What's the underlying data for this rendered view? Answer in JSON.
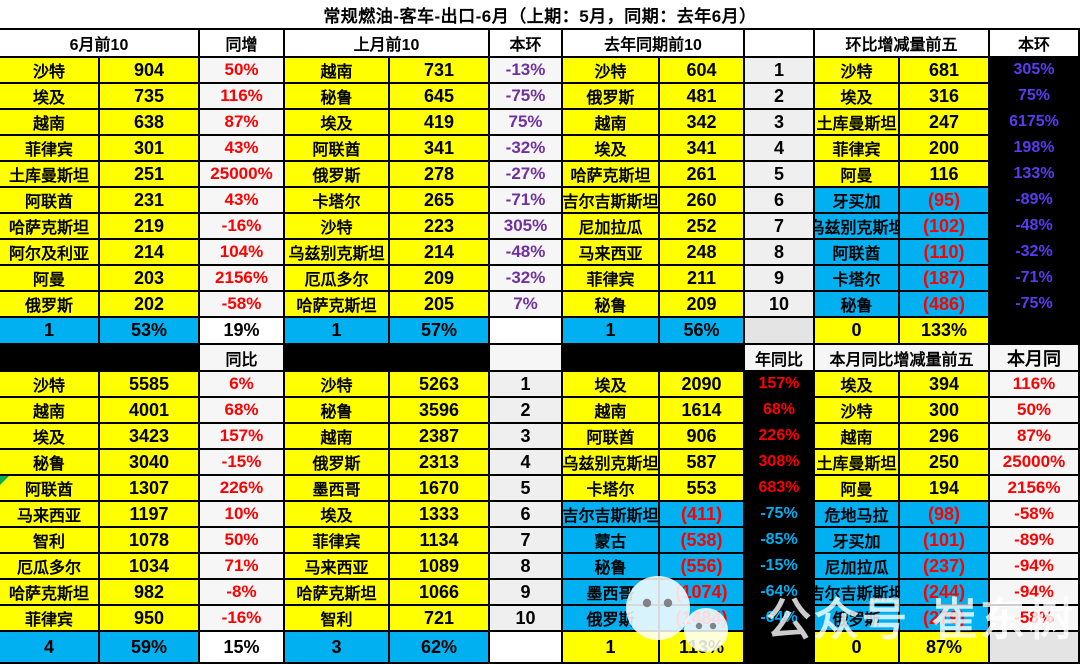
{
  "title": "常规燃油-客车-出口-6月（上期：5月，同期：去年6月）",
  "colors": {
    "yellow": "#FFFF00",
    "cyan": "#00B0F0",
    "red": "#FF0000",
    "purple": "#7030A0",
    "violet": "#5B3BF0",
    "green": "#00B050",
    "cell_white": "#F6F6F6",
    "rank_gray": "#EFEFEF",
    "footer_gray": "#E4E4E4"
  },
  "top": {
    "headers": [
      "6月前10",
      "同增",
      "上月前10",
      "本环",
      "去年同期前10",
      "",
      "环比增减量前五",
      "本环"
    ],
    "sections": [
      {
        "rows": [
          [
            "沙特",
            "904",
            "50%"
          ],
          [
            "埃及",
            "735",
            "116%"
          ],
          [
            "越南",
            "638",
            "87%"
          ],
          [
            "菲律宾",
            "301",
            "43%"
          ],
          [
            "土库曼斯坦",
            "251",
            "25000%"
          ],
          [
            "阿联酋",
            "231",
            "43%"
          ],
          [
            "哈萨克斯坦",
            "219",
            "-16%"
          ],
          [
            "阿尔及利亚",
            "214",
            "104%"
          ],
          [
            "阿曼",
            "203",
            "2156%"
          ],
          [
            "俄罗斯",
            "202",
            "-58%"
          ]
        ],
        "footer": [
          "1",
          "53%",
          "19%"
        ]
      },
      {
        "rows": [
          [
            "越南",
            "731",
            "-13%"
          ],
          [
            "秘鲁",
            "645",
            "-75%"
          ],
          [
            "埃及",
            "419",
            "75%"
          ],
          [
            "阿联酋",
            "341",
            "-32%"
          ],
          [
            "俄罗斯",
            "278",
            "-27%"
          ],
          [
            "卡塔尔",
            "265",
            "-71%"
          ],
          [
            "沙特",
            "223",
            "305%"
          ],
          [
            "乌兹别克斯坦",
            "214",
            "-48%"
          ],
          [
            "厄瓜多尔",
            "209",
            "-32%"
          ],
          [
            "哈萨克斯坦",
            "205",
            "7%"
          ]
        ],
        "footer": [
          "1",
          "57%",
          ""
        ]
      },
      {
        "rows": [
          [
            "沙特",
            "604",
            "1"
          ],
          [
            "俄罗斯",
            "481",
            "2"
          ],
          [
            "越南",
            "342",
            "3"
          ],
          [
            "埃及",
            "341",
            "4"
          ],
          [
            "哈萨克斯坦",
            "261",
            "5"
          ],
          [
            "吉尔吉斯斯坦",
            "260",
            "6"
          ],
          [
            "尼加拉瓜",
            "252",
            "7"
          ],
          [
            "马来西亚",
            "248",
            "8"
          ],
          [
            "菲律宾",
            "211",
            "9"
          ],
          [
            "秘鲁",
            "209",
            "10"
          ]
        ],
        "footer": [
          "1",
          "56%",
          ""
        ]
      },
      {
        "rows": [
          [
            "沙特",
            "681",
            "305%"
          ],
          [
            "埃及",
            "316",
            "75%"
          ],
          [
            "土库曼斯坦",
            "247",
            "6175%"
          ],
          [
            "菲律宾",
            "200",
            "198%"
          ],
          [
            "阿曼",
            "116",
            "133%"
          ],
          [
            "牙买加",
            "(95)",
            "-89%"
          ],
          [
            "乌兹别克斯坦",
            "(102)",
            "-48%"
          ],
          [
            "阿联酋",
            "(110)",
            "-32%"
          ],
          [
            "卡塔尔",
            "(187)",
            "-71%"
          ],
          [
            "秘鲁",
            "(486)",
            "-75%"
          ]
        ],
        "footer": [
          "0",
          "133%",
          ""
        ]
      }
    ]
  },
  "middle": {
    "headers": [
      "同比",
      "年同比",
      "本月同比增减量前五",
      "本月同"
    ]
  },
  "bottom": {
    "sections": [
      {
        "rows": [
          [
            "沙特",
            "5585",
            "6%"
          ],
          [
            "越南",
            "4001",
            "68%"
          ],
          [
            "埃及",
            "3423",
            "157%"
          ],
          [
            "秘鲁",
            "3040",
            "-15%"
          ],
          [
            "阿联酋",
            "1307",
            "226%"
          ],
          [
            "马来西亚",
            "1197",
            "10%"
          ],
          [
            "智利",
            "1078",
            "50%"
          ],
          [
            "厄瓜多尔",
            "1034",
            "71%"
          ],
          [
            "哈萨克斯坦",
            "982",
            "-8%"
          ],
          [
            "菲律宾",
            "950",
            "-16%"
          ]
        ],
        "footer": [
          "4",
          "59%",
          "15%"
        ]
      },
      {
        "rows": [
          [
            "沙特",
            "5263",
            "1"
          ],
          [
            "秘鲁",
            "3596",
            "2"
          ],
          [
            "越南",
            "2387",
            "3"
          ],
          [
            "俄罗斯",
            "2313",
            "4"
          ],
          [
            "墨西哥",
            "1670",
            "5"
          ],
          [
            "埃及",
            "1333",
            "6"
          ],
          [
            "菲律宾",
            "1134",
            "7"
          ],
          [
            "马来西亚",
            "1089",
            "8"
          ],
          [
            "哈萨克斯坦",
            "1066",
            "9"
          ],
          [
            "智利",
            "721",
            "10"
          ]
        ],
        "footer": [
          "3",
          "62%",
          ""
        ]
      },
      {
        "rows": [
          [
            "埃及",
            "2090",
            "157%"
          ],
          [
            "越南",
            "1614",
            "68%"
          ],
          [
            "阿联酋",
            "906",
            "226%"
          ],
          [
            "乌兹别克斯坦",
            "587",
            "308%"
          ],
          [
            "卡塔尔",
            "553",
            "683%"
          ],
          [
            "吉尔吉斯斯坦",
            "(411)",
            "-75%"
          ],
          [
            "蒙古",
            "(538)",
            "-85%"
          ],
          [
            "秘鲁",
            "(556)",
            "-15%"
          ],
          [
            "墨西哥",
            "(1074)",
            "-64%"
          ],
          [
            "俄罗斯",
            "(1484)",
            "-64%"
          ]
        ],
        "footer": [
          "1",
          "113%",
          ""
        ]
      },
      {
        "rows": [
          [
            "埃及",
            "394",
            "116%"
          ],
          [
            "沙特",
            "300",
            "50%"
          ],
          [
            "越南",
            "296",
            "87%"
          ],
          [
            "土库曼斯坦",
            "250",
            "25000%"
          ],
          [
            "阿曼",
            "194",
            "2156%"
          ],
          [
            "危地马拉",
            "(98)",
            "-58%"
          ],
          [
            "牙买加",
            "(101)",
            "-89%"
          ],
          [
            "尼加拉瓜",
            "(237)",
            "-94%"
          ],
          [
            "吉尔吉斯斯坦",
            "(244)",
            "-94%"
          ],
          [
            "俄罗斯",
            "(279)",
            "-58%"
          ]
        ],
        "footer": [
          "0",
          "87%",
          ""
        ]
      }
    ]
  },
  "annotations": {
    "green_corner": {
      "table": "bottom",
      "section": 0,
      "row": 4
    }
  },
  "watermark": {
    "icon": "wechat-icon",
    "text_part1": "公众号",
    "text_part2": "崔东树"
  }
}
